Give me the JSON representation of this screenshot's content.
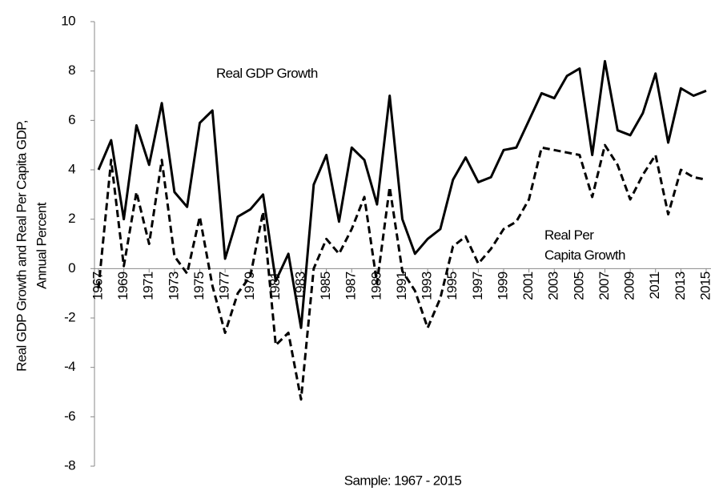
{
  "chart_data": {
    "type": "line",
    "ylabel": [
      "Real GDP  Growth and Real Per Capita GDP,",
      "Annual Percent"
    ],
    "xlabel": "Sample: 1967 - 2015",
    "x": [
      1967,
      1968,
      1969,
      1970,
      1971,
      1972,
      1973,
      1974,
      1975,
      1976,
      1977,
      1978,
      1979,
      1980,
      1981,
      1982,
      1983,
      1984,
      1985,
      1986,
      1987,
      1988,
      1989,
      1990,
      1991,
      1992,
      1993,
      1994,
      1995,
      1996,
      1997,
      1998,
      1999,
      2000,
      2001,
      2002,
      2003,
      2004,
      2005,
      2006,
      2007,
      2008,
      2009,
      2010,
      2011,
      2012,
      2013,
      2014,
      2015
    ],
    "series": [
      {
        "name": "Real GDP  Growth",
        "color": "#000000",
        "dash": "solid",
        "values": [
          4.0,
          5.2,
          2.0,
          5.8,
          4.2,
          6.7,
          3.1,
          2.5,
          5.9,
          6.4,
          0.4,
          2.1,
          2.4,
          3.0,
          -0.5,
          0.6,
          -2.4,
          3.4,
          4.6,
          1.9,
          4.9,
          4.4,
          2.6,
          7.0,
          2.0,
          0.6,
          1.2,
          1.6,
          3.6,
          4.5,
          3.5,
          3.7,
          4.8,
          4.9,
          6.0,
          7.1,
          6.9,
          7.8,
          8.1,
          4.6,
          8.4,
          5.6,
          5.4,
          6.3,
          7.9,
          5.1,
          7.3,
          7.0,
          7.2
        ]
      },
      {
        "name": "Real Per Capita Growth",
        "color": "#000000",
        "dash": "dashed",
        "values": [
          -0.8,
          4.4,
          0.1,
          3.1,
          1.0,
          4.4,
          0.5,
          -0.2,
          2.1,
          -0.7,
          -2.6,
          -1.0,
          -0.3,
          2.3,
          -3.1,
          -2.6,
          -5.3,
          0.0,
          1.2,
          0.6,
          1.6,
          2.9,
          -0.6,
          3.3,
          -0.1,
          -0.9,
          -2.4,
          -1.2,
          0.9,
          1.3,
          0.2,
          0.8,
          1.6,
          1.9,
          2.8,
          4.9,
          4.8,
          4.7,
          4.6,
          2.9,
          5.0,
          4.2,
          2.8,
          3.8,
          4.6,
          2.2,
          4.0,
          3.7,
          3.6
        ]
      }
    ],
    "xlim": [
      1967,
      2015
    ],
    "xticks": [
      1967,
      1969,
      1971,
      1973,
      1975,
      1977,
      1979,
      1981,
      1983,
      1985,
      1987,
      1989,
      1991,
      1993,
      1995,
      1997,
      1999,
      2001,
      2003,
      2005,
      2007,
      2009,
      2011,
      2013,
      2015
    ],
    "ylim": [
      -8,
      10
    ],
    "yticks": [
      -8,
      -6,
      -4,
      -2,
      0,
      2,
      4,
      6,
      8,
      10
    ],
    "grid": false
  }
}
